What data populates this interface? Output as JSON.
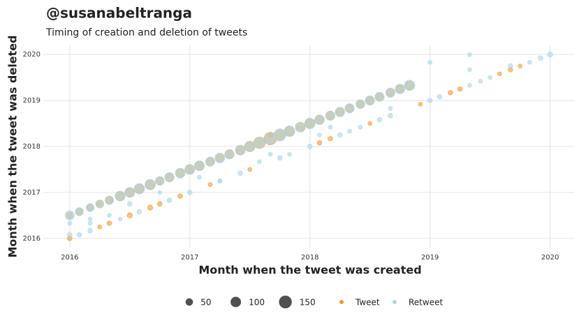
{
  "chart_data": {
    "type": "bubble",
    "title": "@susanabeltranga",
    "subtitle": "Timing of creation and deletion of tweets",
    "x_label": "Month when the tweet was created",
    "y_label": "Month when the tweet was deleted",
    "xlim": [
      2015.78,
      2020.2
    ],
    "ylim": [
      2015.8,
      2020.2
    ],
    "xticks": [
      2016,
      2017,
      2018,
      2019,
      2020
    ],
    "yticks": [
      2016,
      2017,
      2018,
      2019,
      2020
    ],
    "grid": true,
    "alpha": 0.6,
    "size_legend": [
      50,
      100,
      150
    ],
    "series": [
      {
        "name": "Tweet",
        "color": "#f39a2c",
        "x": [
          2016.0,
          2016.08,
          2016.17,
          2016.25,
          2016.33,
          2016.42,
          2016.5,
          2016.58,
          2016.67,
          2016.75,
          2016.83,
          2016.92,
          2017.0,
          2017.08,
          2017.17,
          2017.25,
          2017.33,
          2017.42,
          2017.5,
          2017.58,
          2017.67,
          2017.75,
          2017.83,
          2017.92,
          2018.0,
          2018.08,
          2018.17,
          2018.25,
          2018.33,
          2018.42,
          2018.5,
          2018.58,
          2018.67,
          2018.75,
          2018.83,
          2016.0,
          2016.25,
          2016.33,
          2016.5,
          2016.67,
          2016.75,
          2016.92,
          2017.17,
          2017.5,
          2018.08,
          2018.17,
          2018.5,
          2018.92,
          2019.17,
          2019.25,
          2019.58,
          2019.67,
          2019.75,
          2017.67
        ],
        "values": [
          2016.5,
          2016.58,
          2016.67,
          2016.75,
          2016.83,
          2016.92,
          2017.0,
          2017.08,
          2017.17,
          2017.25,
          2017.33,
          2017.42,
          2017.5,
          2017.58,
          2017.67,
          2017.75,
          2017.83,
          2017.92,
          2018.0,
          2018.08,
          2018.17,
          2018.25,
          2018.33,
          2018.42,
          2018.5,
          2018.58,
          2018.67,
          2018.75,
          2018.83,
          2018.92,
          2019.0,
          2019.08,
          2019.17,
          2019.25,
          2019.33,
          2016.0,
          2016.25,
          2016.33,
          2016.5,
          2016.67,
          2016.75,
          2016.92,
          2017.17,
          2017.5,
          2018.08,
          2018.17,
          2018.5,
          2018.92,
          2019.17,
          2019.25,
          2019.58,
          2019.67,
          2019.75,
          2018.25
        ],
        "sizes": [
          40,
          50,
          40,
          50,
          60,
          80,
          80,
          80,
          90,
          60,
          70,
          70,
          80,
          80,
          60,
          60,
          70,
          80,
          100,
          120,
          140,
          100,
          80,
          80,
          90,
          80,
          70,
          70,
          60,
          60,
          60,
          60,
          60,
          60,
          70,
          20,
          15,
          20,
          25,
          25,
          20,
          20,
          15,
          15,
          20,
          20,
          15,
          15,
          20,
          20,
          15,
          20,
          15,
          20
        ]
      },
      {
        "name": "Retweet",
        "color": "#a9d6ea",
        "x": [
          2016.0,
          2016.08,
          2016.17,
          2016.25,
          2016.33,
          2016.42,
          2016.5,
          2016.58,
          2016.67,
          2016.75,
          2016.83,
          2016.92,
          2017.0,
          2017.08,
          2017.17,
          2017.25,
          2017.33,
          2017.42,
          2017.5,
          2017.58,
          2017.67,
          2017.75,
          2017.83,
          2017.92,
          2018.0,
          2018.08,
          2018.17,
          2018.25,
          2018.33,
          2018.42,
          2018.5,
          2018.58,
          2018.67,
          2018.75,
          2018.83,
          2016.08,
          2016.17,
          2016.42,
          2016.58,
          2016.83,
          2017.0,
          2017.25,
          2017.42,
          2017.75,
          2017.83,
          2018.0,
          2018.25,
          2018.33,
          2018.42,
          2018.58,
          2018.67,
          2019.0,
          2019.08,
          2019.33,
          2019.42,
          2019.5,
          2019.83,
          2019.92,
          2020.0,
          2016.0,
          2016.0,
          2016.17,
          2016.17,
          2016.33,
          2016.5,
          2016.75,
          2017.08,
          2017.25,
          2017.58,
          2017.67,
          2018.08,
          2018.17,
          2018.67,
          2019.0,
          2019.33,
          2019.33,
          2019.67
        ],
        "values": [
          2016.5,
          2016.58,
          2016.67,
          2016.75,
          2016.83,
          2016.92,
          2017.0,
          2017.08,
          2017.17,
          2017.25,
          2017.33,
          2017.42,
          2017.5,
          2017.58,
          2017.67,
          2017.75,
          2017.83,
          2017.92,
          2018.0,
          2018.08,
          2018.17,
          2018.25,
          2018.33,
          2018.42,
          2018.5,
          2018.58,
          2018.67,
          2018.75,
          2018.83,
          2018.92,
          2019.0,
          2019.08,
          2019.17,
          2019.25,
          2019.33,
          2016.08,
          2016.17,
          2016.42,
          2016.58,
          2016.83,
          2017.0,
          2017.25,
          2017.42,
          2017.75,
          2017.83,
          2018.0,
          2018.25,
          2018.33,
          2018.42,
          2018.58,
          2018.67,
          2019.0,
          2019.08,
          2019.33,
          2019.42,
          2019.5,
          2019.83,
          2019.92,
          2020.0,
          2016.08,
          2016.33,
          2016.33,
          2016.42,
          2016.5,
          2016.75,
          2017.0,
          2017.33,
          2017.25,
          2017.67,
          2017.83,
          2018.25,
          2018.42,
          2018.83,
          2019.83,
          2020.0,
          2019.67,
          2019.75
        ],
        "sizes": [
          80,
          60,
          60,
          60,
          60,
          90,
          90,
          100,
          100,
          70,
          80,
          90,
          90,
          90,
          80,
          90,
          80,
          90,
          100,
          110,
          120,
          140,
          110,
          90,
          100,
          80,
          80,
          80,
          80,
          70,
          80,
          80,
          80,
          90,
          100,
          20,
          20,
          15,
          20,
          20,
          20,
          15,
          20,
          20,
          15,
          20,
          20,
          15,
          15,
          20,
          20,
          20,
          20,
          15,
          15,
          15,
          15,
          20,
          25,
          20,
          15,
          15,
          15,
          15,
          20,
          15,
          15,
          15,
          15,
          15,
          15,
          15,
          15,
          15,
          15,
          15,
          20
        ]
      }
    ]
  }
}
